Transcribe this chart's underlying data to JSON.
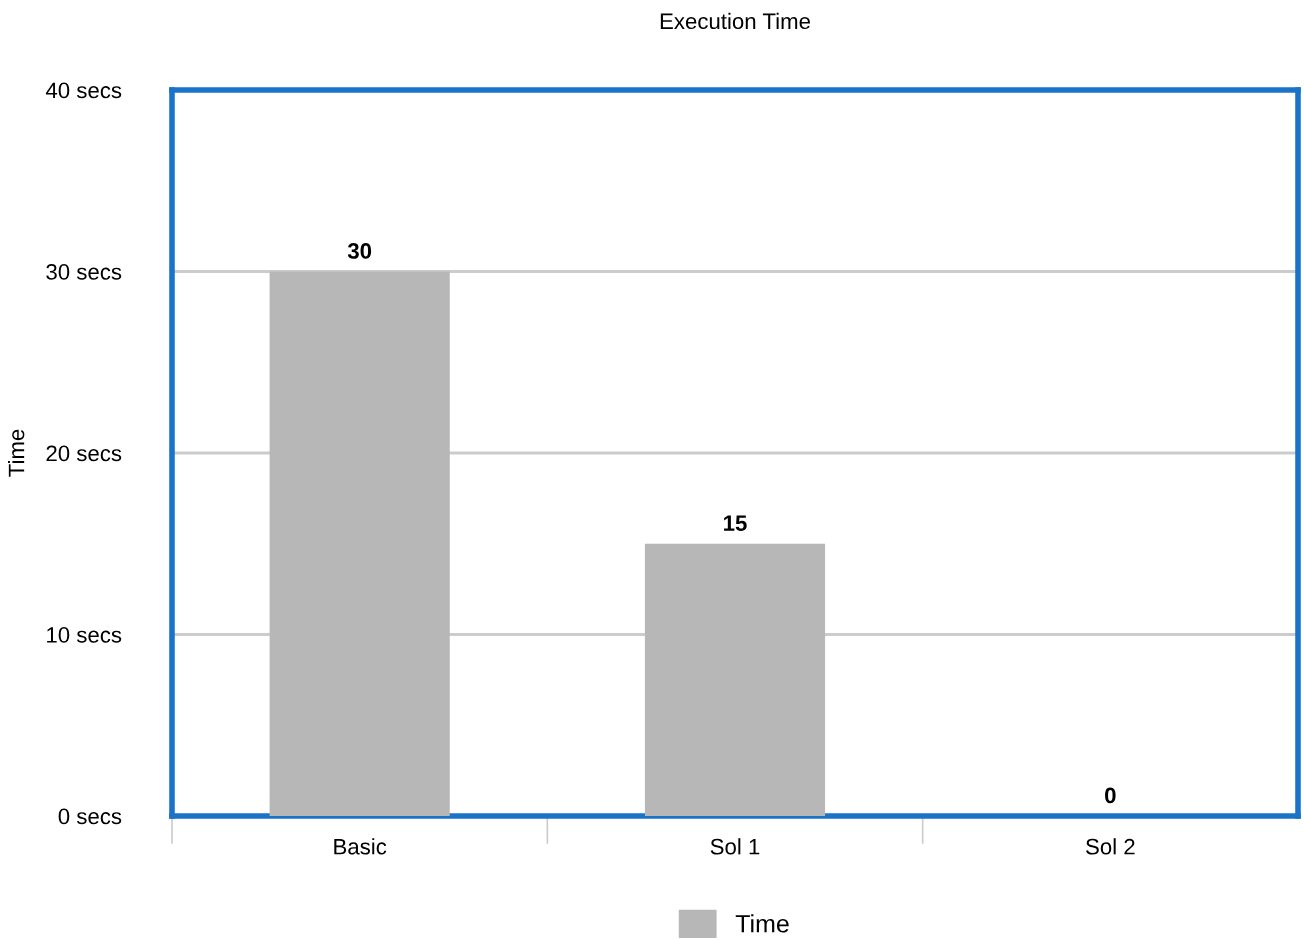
{
  "chart_data": {
    "type": "bar",
    "title": "Execution Time",
    "ylabel": "Time",
    "categories": [
      "Basic",
      "Sol 1",
      "Sol 2"
    ],
    "series": [
      {
        "name": "Time",
        "color": "#b7b7b7",
        "values": [
          30,
          15,
          0
        ]
      }
    ],
    "ylim": [
      0,
      40
    ],
    "yticks": [
      {
        "value": 0,
        "label": "0 secs"
      },
      {
        "value": 10,
        "label": "10 secs"
      },
      {
        "value": 20,
        "label": "20 secs"
      },
      {
        "value": 30,
        "label": "30 secs"
      },
      {
        "value": 40,
        "label": "40 secs"
      }
    ],
    "grid": "y",
    "legend": "bottom",
    "data_labels": true
  }
}
